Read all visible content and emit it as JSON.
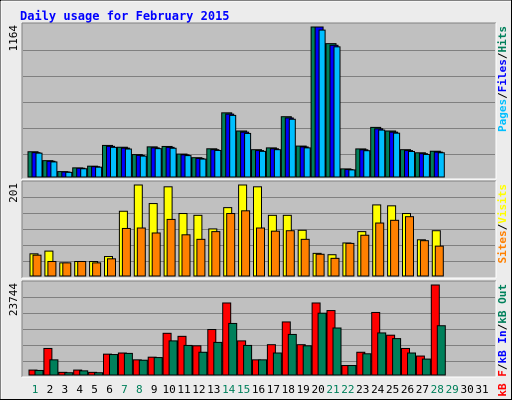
{
  "title": "Daily usage for February 2015",
  "colors": {
    "background": "#ececec",
    "panel": "#c0c0c0",
    "title": "#0000ff",
    "hits": "#00805b",
    "files": "#0000ff",
    "pages": "#00bfff",
    "visits": "#ffff00",
    "sites": "#ff8000",
    "kb_in": "#0000ff",
    "kb_out": "#00805b",
    "kb_f": "#ff0000",
    "sep": "#000000",
    "day_normal": "#000000",
    "day_weekend": "#00805b"
  },
  "legends": {
    "top": [
      {
        "text": "Pages",
        "color": "#00bfff"
      },
      {
        "text": "/",
        "color": "#000000"
      },
      {
        "text": "Files",
        "color": "#0000ff"
      },
      {
        "text": "/",
        "color": "#000000"
      },
      {
        "text": "Hits",
        "color": "#00805b"
      }
    ],
    "mid": [
      {
        "text": "Sites",
        "color": "#ff8000"
      },
      {
        "text": "/",
        "color": "#000000"
      },
      {
        "text": "Visits",
        "color": "#ffff00"
      }
    ],
    "bot": [
      {
        "text": "kB F",
        "color": "#ff0000"
      },
      {
        "text": "/",
        "color": "#000000"
      },
      {
        "text": "kB In",
        "color": "#0000ff"
      },
      {
        "text": "/",
        "color": "#000000"
      },
      {
        "text": "kB Out",
        "color": "#00805b"
      }
    ]
  },
  "chart_data": [
    {
      "type": "bar",
      "panel": "hits",
      "ymax_label": "1164",
      "ylim": [
        0,
        1164
      ],
      "x": [
        1,
        2,
        3,
        4,
        5,
        6,
        7,
        8,
        9,
        10,
        11,
        12,
        13,
        14,
        15,
        16,
        17,
        18,
        19,
        20,
        21,
        22,
        23,
        24,
        25,
        26,
        27,
        28,
        29,
        30,
        31
      ],
      "series": [
        {
          "name": "Hits",
          "values": [
            196,
            127,
            42,
            71,
            84,
            245,
            231,
            174,
            234,
            237,
            178,
            150,
            219,
            498,
            357,
            212,
            226,
            468,
            240,
            1164,
            1035,
            63,
            218,
            385,
            357,
            212,
            188,
            200,
            0,
            0,
            0
          ]
        },
        {
          "name": "Files",
          "values": [
            189,
            122,
            39,
            68,
            80,
            238,
            224,
            168,
            226,
            230,
            172,
            144,
            212,
            488,
            348,
            205,
            219,
            458,
            233,
            1164,
            1022,
            58,
            211,
            374,
            348,
            205,
            181,
            193,
            0,
            0,
            0
          ]
        },
        {
          "name": "Pages",
          "values": [
            185,
            117,
            36,
            64,
            76,
            230,
            217,
            162,
            220,
            223,
            166,
            139,
            206,
            478,
            338,
            199,
            212,
            448,
            226,
            1140,
            1010,
            55,
            204,
            364,
            340,
            198,
            175,
            188,
            0,
            0,
            0
          ]
        }
      ]
    },
    {
      "type": "bar",
      "panel": "visits",
      "ymax_label": "201",
      "ylim": [
        0,
        201
      ],
      "x": [
        1,
        2,
        3,
        4,
        5,
        6,
        7,
        8,
        9,
        10,
        11,
        12,
        13,
        14,
        15,
        16,
        17,
        18,
        19,
        20,
        21,
        22,
        23,
        24,
        25,
        26,
        27,
        28,
        29,
        30,
        31
      ],
      "series": [
        {
          "name": "Visits",
          "values": [
            49,
            55,
            29,
            32,
            32,
            43,
            143,
            201,
            160,
            197,
            138,
            134,
            104,
            151,
            201,
            197,
            134,
            134,
            101,
            50,
            47,
            73,
            98,
            157,
            155,
            138,
            80,
            100,
            0,
            0,
            0
          ]
        },
        {
          "name": "Sites",
          "values": [
            46,
            32,
            29,
            32,
            29,
            38,
            105,
            106,
            95,
            125,
            91,
            81,
            98,
            138,
            144,
            106,
            99,
            100,
            81,
            48,
            39,
            72,
            90,
            117,
            123,
            131,
            78,
            66,
            0,
            0,
            0
          ]
        }
      ]
    },
    {
      "type": "bar",
      "panel": "kbytes",
      "ymax_label": "23744",
      "ylim": [
        0,
        23744
      ],
      "x": [
        1,
        2,
        3,
        4,
        5,
        6,
        7,
        8,
        9,
        10,
        11,
        12,
        13,
        14,
        15,
        16,
        17,
        18,
        19,
        20,
        21,
        22,
        23,
        24,
        25,
        26,
        27,
        28,
        29,
        30,
        31
      ],
      "series": [
        {
          "name": "kB F",
          "values": [
            1300,
            7000,
            700,
            1300,
            700,
            5500,
            5800,
            4000,
            4700,
            11000,
            10200,
            7700,
            12000,
            19000,
            9000,
            4000,
            8000,
            14000,
            8000,
            19000,
            17000,
            2500,
            6000,
            16500,
            10500,
            7000,
            5000,
            23744,
            0,
            0,
            0
          ]
        },
        {
          "name": "kB In",
          "values": [
            0,
            0,
            0,
            0,
            0,
            0,
            0,
            0,
            0,
            0,
            0,
            0,
            0,
            0,
            0,
            0,
            0,
            0,
            0,
            0,
            0,
            0,
            0,
            0,
            0,
            0,
            0,
            0,
            0,
            0,
            0
          ]
        },
        {
          "name": "kB Out",
          "values": [
            1200,
            4000,
            600,
            1100,
            600,
            5400,
            5700,
            3900,
            4600,
            9000,
            7800,
            6000,
            8600,
            13600,
            7800,
            4000,
            5800,
            10700,
            7700,
            16300,
            12400,
            2500,
            5600,
            11100,
            9600,
            5800,
            4200,
            13000,
            0,
            0,
            0
          ]
        }
      ]
    }
  ],
  "days": [
    {
      "label": "1",
      "weekend": true
    },
    {
      "label": "2",
      "weekend": false
    },
    {
      "label": "3",
      "weekend": false
    },
    {
      "label": "4",
      "weekend": false
    },
    {
      "label": "5",
      "weekend": false
    },
    {
      "label": "6",
      "weekend": false
    },
    {
      "label": "7",
      "weekend": true
    },
    {
      "label": "8",
      "weekend": true
    },
    {
      "label": "9",
      "weekend": false
    },
    {
      "label": "10",
      "weekend": false
    },
    {
      "label": "11",
      "weekend": false
    },
    {
      "label": "12",
      "weekend": false
    },
    {
      "label": "13",
      "weekend": false
    },
    {
      "label": "14",
      "weekend": true
    },
    {
      "label": "15",
      "weekend": true
    },
    {
      "label": "16",
      "weekend": false
    },
    {
      "label": "17",
      "weekend": false
    },
    {
      "label": "18",
      "weekend": false
    },
    {
      "label": "19",
      "weekend": false
    },
    {
      "label": "20",
      "weekend": false
    },
    {
      "label": "21",
      "weekend": true
    },
    {
      "label": "22",
      "weekend": true
    },
    {
      "label": "23",
      "weekend": false
    },
    {
      "label": "24",
      "weekend": false
    },
    {
      "label": "25",
      "weekend": false
    },
    {
      "label": "26",
      "weekend": false
    },
    {
      "label": "27",
      "weekend": false
    },
    {
      "label": "28",
      "weekend": true
    },
    {
      "label": "29",
      "weekend": true
    },
    {
      "label": "30",
      "weekend": false
    },
    {
      "label": "31",
      "weekend": false
    }
  ]
}
